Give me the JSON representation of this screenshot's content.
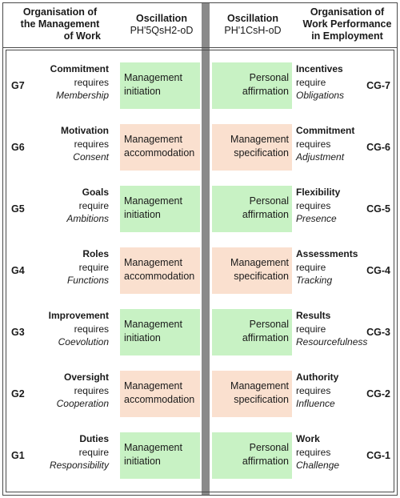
{
  "header": {
    "left_title": [
      "Organisation of",
      "the Management",
      "of Work"
    ],
    "osc_left": [
      "Oscillation",
      "PH'5QsH2-oD"
    ],
    "osc_right": [
      "Oscillation",
      "PH'1CsH-oD"
    ],
    "right_title": [
      "Organisation of",
      "Work Performance",
      "in Employment"
    ]
  },
  "colors": {
    "green": "#c8f2c4",
    "peach": "#fae0cf",
    "divider": "#8a8a8a"
  },
  "rows": [
    {
      "g": "G7",
      "l1": "Commitment",
      "l2": "requires",
      "l3": "Membership",
      "box_left": [
        "Management",
        "initiation"
      ],
      "box_left_color": "green",
      "box_right": [
        "Personal",
        "affirmation"
      ],
      "box_right_color": "green",
      "r1": "Incentives",
      "r2": "require",
      "r3": "Obligations",
      "cg": "CG-7"
    },
    {
      "g": "G6",
      "l1": "Motivation",
      "l2": "requires",
      "l3": "Consent",
      "box_left": [
        "Management",
        "accommodation"
      ],
      "box_left_color": "peach",
      "box_right": [
        "Management",
        "specification"
      ],
      "box_right_color": "peach",
      "r1": "Commitment",
      "r2": "requires",
      "r3": "Adjustment",
      "cg": "CG-6"
    },
    {
      "g": "G5",
      "l1": "Goals",
      "l2": "require",
      "l3": "Ambitions",
      "box_left": [
        "Management",
        "initiation"
      ],
      "box_left_color": "green",
      "box_right": [
        "Personal",
        "affirmation"
      ],
      "box_right_color": "green",
      "r1": "Flexibility",
      "r2": "requires",
      "r3": "Presence",
      "cg": "CG-5"
    },
    {
      "g": "G4",
      "l1": "Roles",
      "l2": "require",
      "l3": "Functions",
      "box_left": [
        "Management",
        "accommodation"
      ],
      "box_left_color": "peach",
      "box_right": [
        "Management",
        "specification"
      ],
      "box_right_color": "peach",
      "r1": "Assessments",
      "r2": "require",
      "r3": "Tracking",
      "cg": "CG-4"
    },
    {
      "g": "G3",
      "l1": "Improvement",
      "l2": "requires",
      "l3": "Coevolution",
      "box_left": [
        "Management",
        "initiation"
      ],
      "box_left_color": "green",
      "box_right": [
        "Personal",
        "affirmation"
      ],
      "box_right_color": "green",
      "r1": "Results",
      "r2": "require",
      "r3": "Resourcefulness",
      "cg": "CG-3"
    },
    {
      "g": "G2",
      "l1": "Oversight",
      "l2": "requires",
      "l3": "Cooperation",
      "box_left": [
        "Management",
        "accommodation"
      ],
      "box_left_color": "peach",
      "box_right": [
        "Management",
        "specification"
      ],
      "box_right_color": "peach",
      "r1": "Authority",
      "r2": "requires",
      "r3": "Influence",
      "cg": "CG-2"
    },
    {
      "g": "G1",
      "l1": "Duties",
      "l2": "require",
      "l3": "Responsibility",
      "box_left": [
        "Management",
        "initiation"
      ],
      "box_left_color": "green",
      "box_right": [
        "Personal",
        "affirmation"
      ],
      "box_right_color": "green",
      "r1": "Work",
      "r2": "requires",
      "r3": "Challenge",
      "cg": "CG-1"
    }
  ]
}
